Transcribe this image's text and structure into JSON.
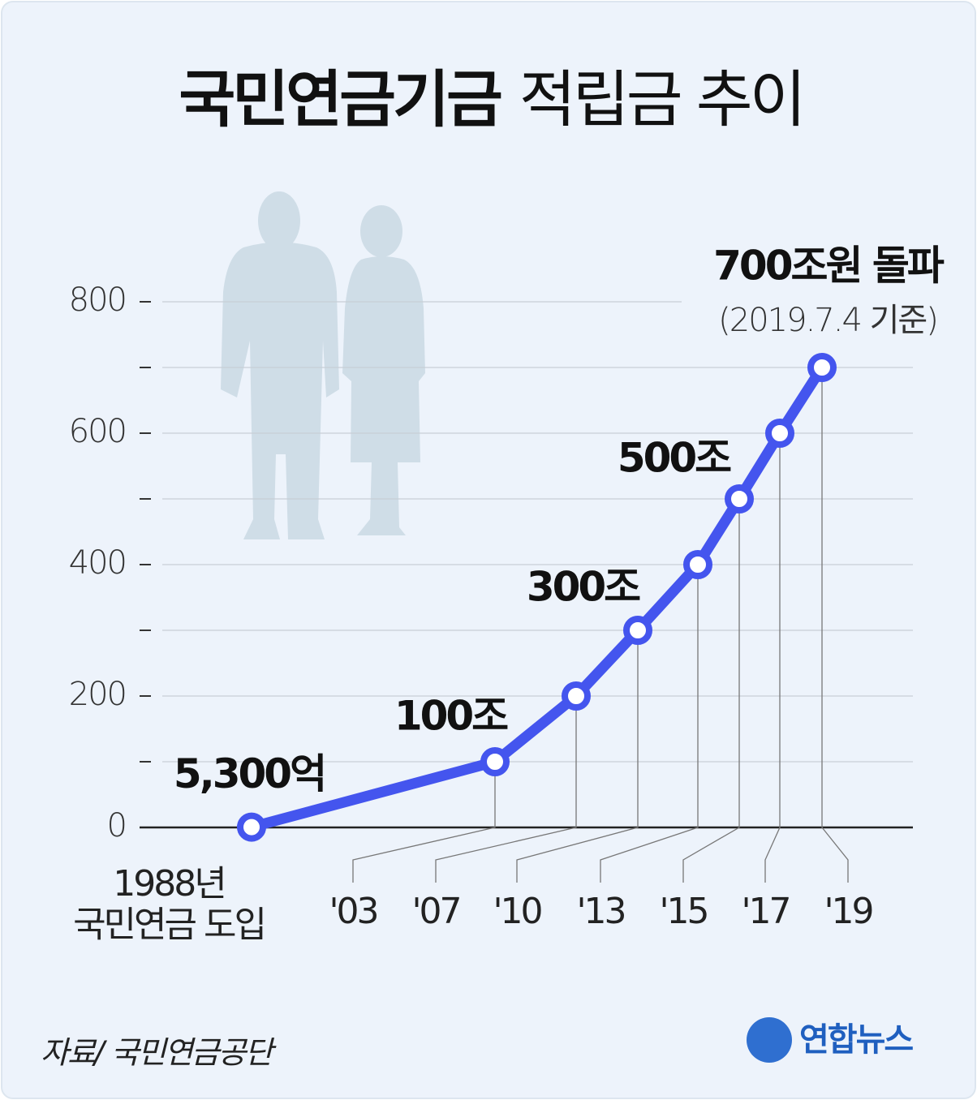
{
  "chart_data": {
    "type": "line",
    "title": "국민연금기금",
    "subtitle": "적립금 추이",
    "categories": [
      "1988년\n국민연금 도입",
      "'03",
      "'07",
      "'10",
      "'13",
      "'15",
      "'17",
      "'19"
    ],
    "values": [
      0.53,
      100,
      200,
      300,
      400,
      500,
      600,
      700
    ],
    "value_labels": [
      "5,300억",
      "100조",
      null,
      "300조",
      null,
      "500조",
      null,
      "700조원 돌파"
    ],
    "annotation": "(2019.7.4 기준)",
    "color": "#4455ee",
    "ylim": [
      0,
      800
    ],
    "yticks": [
      0,
      200,
      400,
      600,
      800
    ],
    "minor_yticks": [
      100,
      300,
      500,
      700
    ],
    "grid": true
  },
  "source": "자료/ 국민연금공단",
  "logo": "연합뉴스"
}
